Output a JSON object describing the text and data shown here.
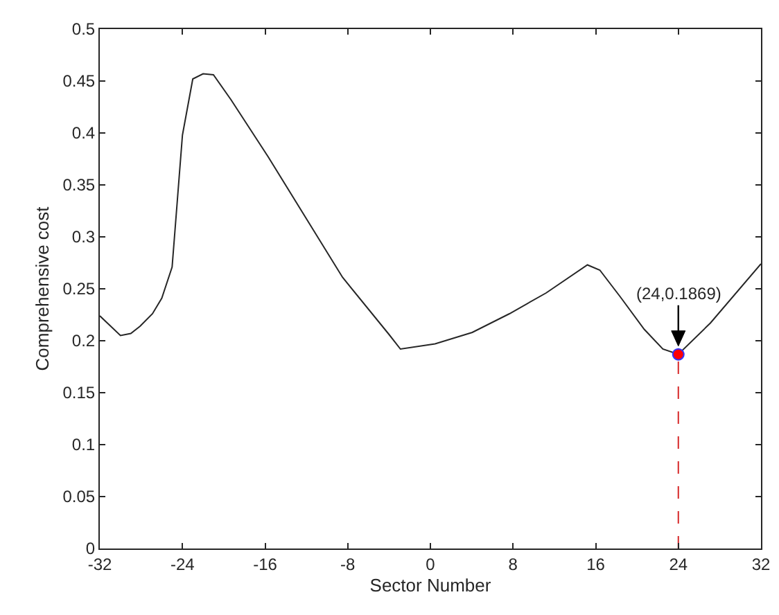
{
  "chart_data": {
    "type": "line",
    "xlabel": "Sector Number",
    "ylabel": "Comprehensive cost",
    "xlim": [
      -32,
      32
    ],
    "xticks": [
      -32,
      -24,
      -16,
      -8,
      0,
      8,
      16,
      24,
      32
    ],
    "ylim": [
      0,
      0.5
    ],
    "yticks": [
      0,
      0.05,
      0.1,
      0.15,
      0.2,
      0.25,
      0.3,
      0.35,
      0.4,
      0.45,
      0.5
    ],
    "grid": false,
    "series": [
      {
        "color": "#262626",
        "marker": "none",
        "line_style": "solid",
        "x": [
          -32,
          -30,
          -29,
          -28.1,
          -26.9,
          -26,
          -25,
          -24,
          -23,
          -22,
          -21,
          -19.3,
          -15.7,
          -12.1,
          -8.5,
          -4.0,
          -2.9,
          0.45,
          4.05,
          7.65,
          11.2,
          15.2,
          16.4,
          18.4,
          20.7,
          22.5,
          24,
          27.1,
          32
        ],
        "values": [
          0.224,
          0.205,
          0.207,
          0.214,
          0.226,
          0.241,
          0.271,
          0.398,
          0.452,
          0.457,
          0.456,
          0.432,
          0.377,
          0.319,
          0.261,
          0.206,
          0.192,
          0.197,
          0.208,
          0.226,
          0.246,
          0.273,
          0.268,
          0.242,
          0.211,
          0.192,
          0.187,
          0.217,
          0.274
        ]
      },
      {
        "type": "scatter",
        "color": "#ff0000",
        "marker": "circle",
        "x": [
          24
        ],
        "values": [
          0.1869
        ]
      }
    ],
    "ref_lines": [
      {
        "axis": "x",
        "value": 24,
        "color": "#d62728",
        "line_style": "dashed"
      }
    ],
    "annotations": [
      {
        "text": "(24,0.1869)",
        "x": 24,
        "y": 0.1869
      }
    ]
  }
}
